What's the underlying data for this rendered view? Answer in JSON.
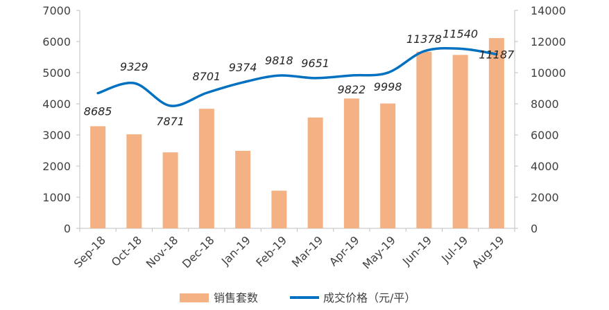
{
  "chart_data": {
    "type": "bar",
    "categories": [
      "Sep-18",
      "Oct-18",
      "Nov-18",
      "Dec-18",
      "Jan-19",
      "Feb-19",
      "Mar-19",
      "Apr-19",
      "May-19",
      "Jun-19",
      "Jul-19",
      "Aug-19"
    ],
    "series": [
      {
        "name": "销售套数",
        "type": "bar",
        "axis": "left",
        "color": "#F4B183",
        "values": [
          3280,
          3020,
          2440,
          3840,
          2490,
          1210,
          3560,
          4170,
          4010,
          5670,
          5570,
          6110
        ]
      },
      {
        "name": "成交价格（元/平）",
        "type": "line",
        "axis": "right",
        "color": "#0070C0",
        "smooth": true,
        "values": [
          8685,
          9329,
          7871,
          8701,
          9374,
          9818,
          9651,
          9822,
          9998,
          11378,
          11540,
          11187
        ],
        "data_labels": [
          "8685",
          "9329",
          "7871",
          "8701",
          "9374",
          "9818",
          "9651",
          "9822",
          "9998",
          "11378",
          "11540",
          "11187"
        ]
      }
    ],
    "y_left": {
      "min": 0,
      "max": 7000,
      "ticks": [
        "0",
        "1000",
        "2000",
        "3000",
        "4000",
        "5000",
        "6000",
        "7000"
      ]
    },
    "y_right": {
      "min": 0,
      "max": 14000,
      "ticks": [
        "0",
        "2000",
        "4000",
        "6000",
        "8000",
        "10000",
        "12000",
        "14000"
      ]
    },
    "grid": false,
    "legend_position": "bottom"
  }
}
